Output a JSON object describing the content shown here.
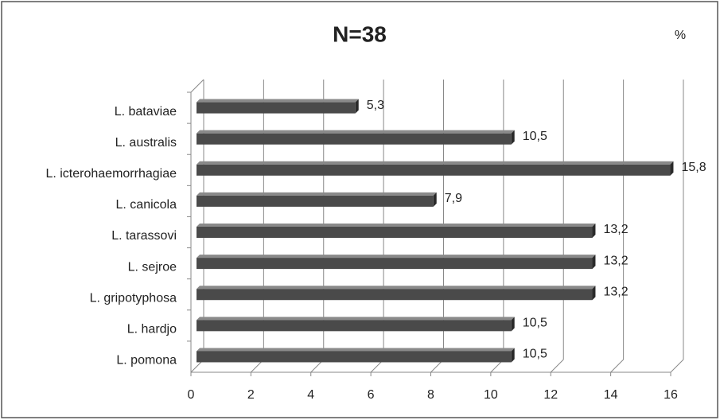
{
  "chart_data": {
    "type": "bar",
    "orientation": "horizontal",
    "title": "N=38",
    "unit_label": "%",
    "categories": [
      "L. bataviae",
      "L. australis",
      "L. icterohaemorrhagiae",
      "L. canicola",
      "L. tarassovi",
      "L. sejroe",
      "L. gripotyphosa",
      "L. hardjo",
      "L. pomona"
    ],
    "values": [
      5.3,
      10.5,
      15.8,
      7.9,
      13.2,
      13.2,
      13.2,
      10.5,
      10.5
    ],
    "value_labels": [
      "5,3",
      "10,5",
      "15,8",
      "7,9",
      "13,2",
      "13,2",
      "13,2",
      "10,5",
      "10,5"
    ],
    "color": "#4a4a4a",
    "xlim": [
      0,
      16
    ],
    "xticks": [
      0,
      2,
      4,
      6,
      8,
      10,
      12,
      14,
      16
    ],
    "grid": true
  }
}
